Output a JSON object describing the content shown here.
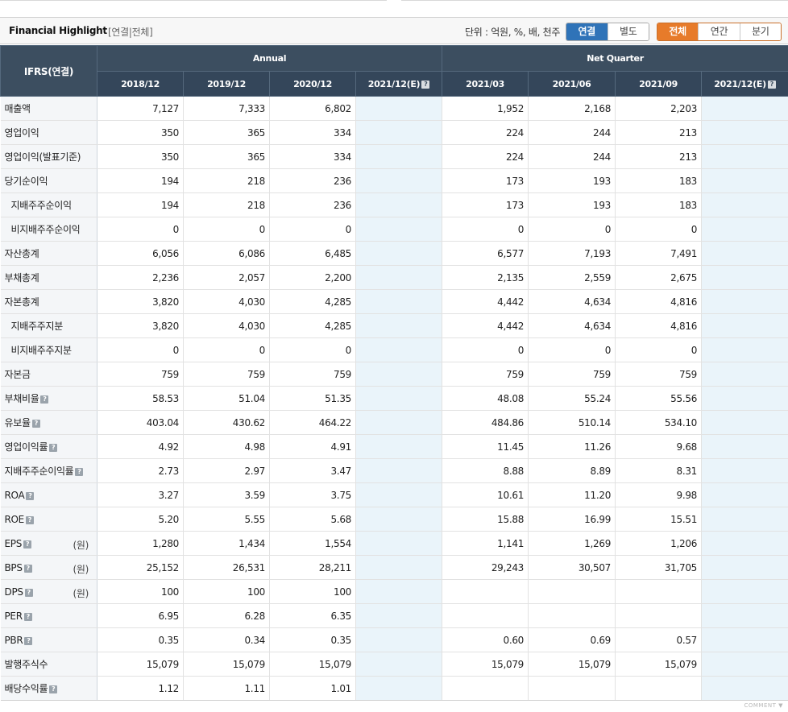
{
  "header": {
    "title": "Financial Highlight",
    "subtitle": "[연결|전체]",
    "unit_text": "단위 : 억원, %, 배, 천주",
    "consolidation_tabs": [
      {
        "label": "연결",
        "active": true
      },
      {
        "label": "별도",
        "active": false
      }
    ],
    "period_tabs": [
      {
        "label": "전체",
        "active": true
      },
      {
        "label": "연간",
        "active": false
      },
      {
        "label": "분기",
        "active": false
      }
    ]
  },
  "table": {
    "corner_label": "IFRS(연결)",
    "group_annual": "Annual",
    "group_quarter": "Net Quarter",
    "columns": [
      "2018/12",
      "2019/12",
      "2020/12",
      "2021/12(E)",
      "2021/03",
      "2021/06",
      "2021/09",
      "2021/12(E)"
    ],
    "rows": [
      {
        "label": "매출액",
        "indent": false,
        "help": false,
        "suffix": "",
        "values": [
          "7,127",
          "7,333",
          "6,802",
          "",
          "1,952",
          "2,168",
          "2,203",
          ""
        ]
      },
      {
        "label": "영업이익",
        "indent": false,
        "help": false,
        "suffix": "",
        "values": [
          "350",
          "365",
          "334",
          "",
          "224",
          "244",
          "213",
          ""
        ]
      },
      {
        "label": "영업이익(발표기준)",
        "indent": false,
        "help": false,
        "suffix": "",
        "values": [
          "350",
          "365",
          "334",
          "",
          "224",
          "244",
          "213",
          ""
        ]
      },
      {
        "label": "당기순이익",
        "indent": false,
        "help": false,
        "suffix": "",
        "values": [
          "194",
          "218",
          "236",
          "",
          "173",
          "193",
          "183",
          ""
        ]
      },
      {
        "label": "지배주주순이익",
        "indent": true,
        "help": false,
        "suffix": "",
        "values": [
          "194",
          "218",
          "236",
          "",
          "173",
          "193",
          "183",
          ""
        ]
      },
      {
        "label": "비지배주주순이익",
        "indent": true,
        "help": false,
        "suffix": "",
        "values": [
          "0",
          "0",
          "0",
          "",
          "0",
          "0",
          "0",
          ""
        ]
      },
      {
        "label": "자산총계",
        "indent": false,
        "help": false,
        "suffix": "",
        "values": [
          "6,056",
          "6,086",
          "6,485",
          "",
          "6,577",
          "7,193",
          "7,491",
          ""
        ]
      },
      {
        "label": "부채총계",
        "indent": false,
        "help": false,
        "suffix": "",
        "values": [
          "2,236",
          "2,057",
          "2,200",
          "",
          "2,135",
          "2,559",
          "2,675",
          ""
        ]
      },
      {
        "label": "자본총계",
        "indent": false,
        "help": false,
        "suffix": "",
        "values": [
          "3,820",
          "4,030",
          "4,285",
          "",
          "4,442",
          "4,634",
          "4,816",
          ""
        ]
      },
      {
        "label": "지배주주지분",
        "indent": true,
        "help": false,
        "suffix": "",
        "values": [
          "3,820",
          "4,030",
          "4,285",
          "",
          "4,442",
          "4,634",
          "4,816",
          ""
        ]
      },
      {
        "label": "비지배주주지분",
        "indent": true,
        "help": false,
        "suffix": "",
        "values": [
          "0",
          "0",
          "0",
          "",
          "0",
          "0",
          "0",
          ""
        ]
      },
      {
        "label": "자본금",
        "indent": false,
        "help": false,
        "suffix": "",
        "values": [
          "759",
          "759",
          "759",
          "",
          "759",
          "759",
          "759",
          ""
        ]
      },
      {
        "label": "부채비율",
        "indent": false,
        "help": true,
        "suffix": "",
        "values": [
          "58.53",
          "51.04",
          "51.35",
          "",
          "48.08",
          "55.24",
          "55.56",
          ""
        ]
      },
      {
        "label": "유보율",
        "indent": false,
        "help": true,
        "suffix": "",
        "values": [
          "403.04",
          "430.62",
          "464.22",
          "",
          "484.86",
          "510.14",
          "534.10",
          ""
        ]
      },
      {
        "label": "영업이익률",
        "indent": false,
        "help": true,
        "suffix": "",
        "values": [
          "4.92",
          "4.98",
          "4.91",
          "",
          "11.45",
          "11.26",
          "9.68",
          ""
        ]
      },
      {
        "label": "지배주주순이익률",
        "indent": false,
        "help": true,
        "suffix": "",
        "values": [
          "2.73",
          "2.97",
          "3.47",
          "",
          "8.88",
          "8.89",
          "8.31",
          ""
        ]
      },
      {
        "label": "ROA",
        "indent": false,
        "help": true,
        "suffix": "",
        "values": [
          "3.27",
          "3.59",
          "3.75",
          "",
          "10.61",
          "11.20",
          "9.98",
          ""
        ]
      },
      {
        "label": "ROE",
        "indent": false,
        "help": true,
        "suffix": "",
        "values": [
          "5.20",
          "5.55",
          "5.68",
          "",
          "15.88",
          "16.99",
          "15.51",
          ""
        ]
      },
      {
        "label": "EPS",
        "indent": false,
        "help": true,
        "suffix": "(원)",
        "values": [
          "1,280",
          "1,434",
          "1,554",
          "",
          "1,141",
          "1,269",
          "1,206",
          ""
        ]
      },
      {
        "label": "BPS",
        "indent": false,
        "help": true,
        "suffix": "(원)",
        "values": [
          "25,152",
          "26,531",
          "28,211",
          "",
          "29,243",
          "30,507",
          "31,705",
          ""
        ]
      },
      {
        "label": "DPS",
        "indent": false,
        "help": true,
        "suffix": "(원)",
        "values": [
          "100",
          "100",
          "100",
          "",
          "",
          "",
          "",
          ""
        ]
      },
      {
        "label": "PER",
        "indent": false,
        "help": true,
        "suffix": "",
        "values": [
          "6.95",
          "6.28",
          "6.35",
          "",
          "",
          "",
          "",
          ""
        ]
      },
      {
        "label": "PBR",
        "indent": false,
        "help": true,
        "suffix": "",
        "values": [
          "0.35",
          "0.34",
          "0.35",
          "",
          "0.60",
          "0.69",
          "0.57",
          ""
        ]
      },
      {
        "label": "발행주식수",
        "indent": false,
        "help": false,
        "suffix": "",
        "values": [
          "15,079",
          "15,079",
          "15,079",
          "",
          "15,079",
          "15,079",
          "15,079",
          ""
        ]
      },
      {
        "label": "배당수익률",
        "indent": false,
        "help": true,
        "suffix": "",
        "values": [
          "1.12",
          "1.11",
          "1.01",
          "",
          "",
          "",
          "",
          ""
        ]
      }
    ]
  },
  "footer": {
    "comment_label": "COMMENT ▼"
  }
}
